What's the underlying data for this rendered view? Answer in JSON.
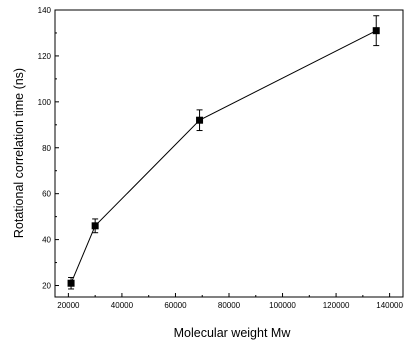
{
  "chart_data": {
    "type": "scatter",
    "xlabel": "Molecular weight Mw",
    "ylabel": "Rotational correlation time (ns)",
    "xlim": [
      15000,
      145000
    ],
    "ylim": [
      15,
      140
    ],
    "x_ticks": [
      20000,
      40000,
      60000,
      80000,
      100000,
      120000,
      140000
    ],
    "y_ticks": [
      20,
      40,
      60,
      80,
      100,
      120,
      140
    ],
    "grid": false,
    "series": [
      {
        "x": [
          21000,
          30000,
          69000,
          135000
        ],
        "y": [
          21,
          46,
          92,
          131
        ],
        "error": [
          2.5,
          3,
          4.5,
          6.5
        ],
        "marker": "square",
        "line": true,
        "color": "#000000"
      }
    ]
  }
}
